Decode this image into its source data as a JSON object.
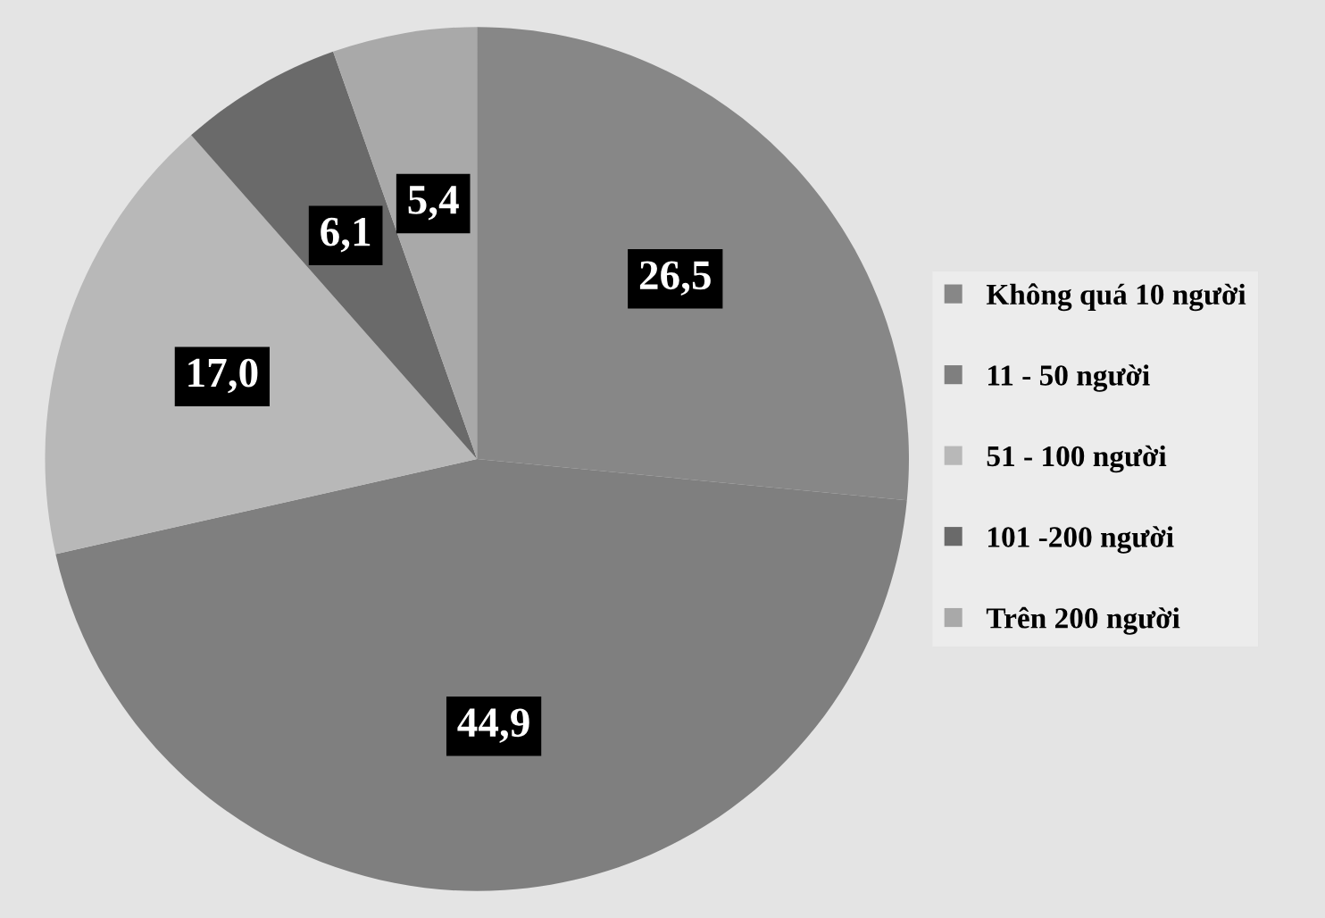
{
  "chart_data": {
    "type": "pie",
    "categories": [
      "Không quá 10 người",
      "11 - 50 người",
      "51 - 100 người",
      "101 -200 người",
      "Trên 200 người"
    ],
    "values": [
      26.5,
      44.9,
      17.0,
      6.1,
      5.4
    ],
    "value_labels": [
      "26,5",
      "44,9",
      "17,0",
      "6,1",
      "5,4"
    ],
    "colors": [
      "#878787",
      "#7f7f7f",
      "#b8b8b8",
      "#6a6a6a",
      "#a9a9a9"
    ],
    "legend": "right"
  }
}
